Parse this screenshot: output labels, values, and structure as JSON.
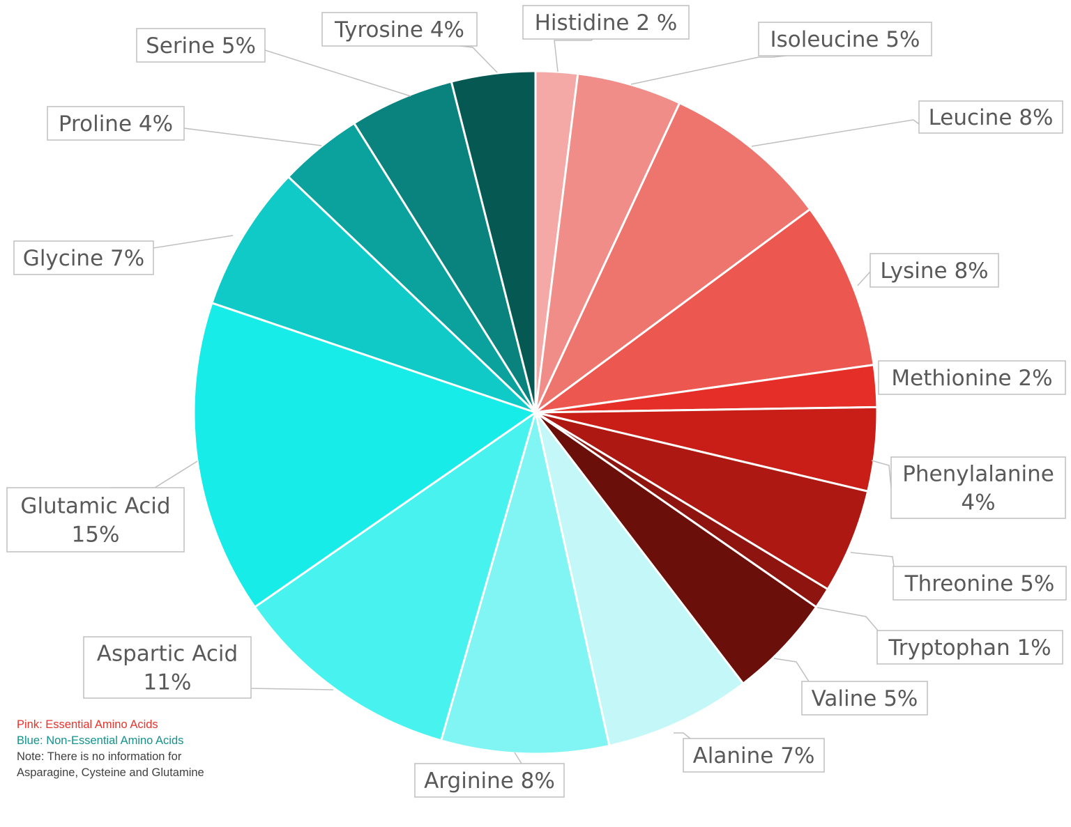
{
  "chart_data": {
    "type": "pie",
    "title": "",
    "slices": [
      {
        "label": "Histidine 2 %",
        "value": 2,
        "color": "#F4A9A6"
      },
      {
        "label": "Isoleucine 5%",
        "value": 5,
        "color": "#F08D88"
      },
      {
        "label": "Leucine 8%",
        "value": 8,
        "color": "#ED756E"
      },
      {
        "label": "Lysine 8%",
        "value": 8,
        "color": "#EC5750"
      },
      {
        "label": "Methionine 2%",
        "value": 2,
        "color": "#E52E27"
      },
      {
        "label": "Phenylalanine 4%",
        "value": 4,
        "color": "#C81E17"
      },
      {
        "label": "Threonine 5%",
        "value": 5,
        "color": "#AD1812"
      },
      {
        "label": "Tryptophan 1%",
        "value": 1,
        "color": "#8E140F"
      },
      {
        "label": "Valine 5%",
        "value": 5,
        "color": "#6B0F0B"
      },
      {
        "label": "Alanine 7%",
        "value": 7,
        "color": "#C4F8F8"
      },
      {
        "label": "Arginine 8%",
        "value": 8,
        "color": "#80F5F3"
      },
      {
        "label": "Aspartic Acid 11%",
        "value": 11,
        "color": "#48F2EE"
      },
      {
        "label": "Glutamic Acid 15%",
        "value": 15,
        "color": "#17ECE8"
      },
      {
        "label": "Glycine 7%",
        "value": 7,
        "color": "#0FCAC6"
      },
      {
        "label": "Proline 4%",
        "value": 4,
        "color": "#0BA29E"
      },
      {
        "label": "Serine 5%",
        "value": 5,
        "color": "#0A827E"
      },
      {
        "label": "Tyrosine 4%",
        "value": 4,
        "color": "#065853"
      }
    ]
  },
  "notes": {
    "essential": "Pink: Essential Amino Acids",
    "nonessential": "Blue: Non-Essential Amino Acids",
    "missing": "Note: There is no information for Asparagine, Cysteine and Glutamine"
  },
  "colors": {
    "essential": "#E8322B",
    "nonessential": "#12928C",
    "note": "#404040",
    "label_text": "#595959",
    "leader": "#BFBFBF"
  }
}
